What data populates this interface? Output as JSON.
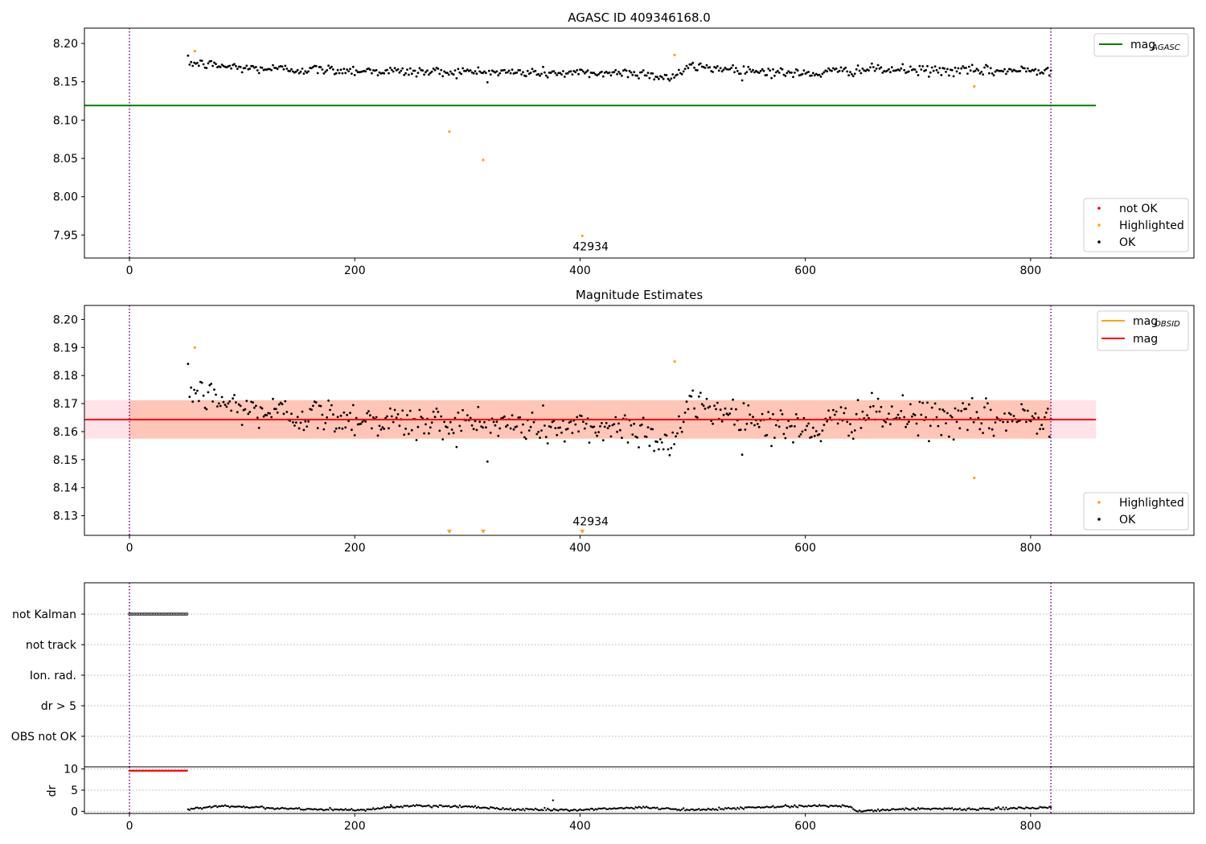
{
  "chart_data": [
    {
      "type": "scatter",
      "title": "AGASC ID 409346168.0",
      "xlim": [
        -40,
        945
      ],
      "ylim": [
        7.92,
        8.22
      ],
      "x_ticks": [
        0,
        200,
        400,
        600,
        800
      ],
      "y_ticks": [
        7.95,
        8.0,
        8.05,
        8.1,
        8.15,
        8.2
      ],
      "vlines": [
        0,
        818
      ],
      "hlines": [
        {
          "name": "mag_AGASC",
          "y": 8.119,
          "x": [
            -40,
            858
          ],
          "color": "#008000"
        }
      ],
      "ok_series": {
        "name": "OK",
        "color": "#000000",
        "x_start": 52,
        "x_end": 818,
        "count": 560,
        "profile": [
          [
            52,
            8.175
          ],
          [
            100,
            8.168
          ],
          [
            150,
            8.166
          ],
          [
            200,
            8.165
          ],
          [
            250,
            8.163
          ],
          [
            300,
            8.163
          ],
          [
            350,
            8.162
          ],
          [
            400,
            8.161
          ],
          [
            450,
            8.162
          ],
          [
            480,
            8.155
          ],
          [
            500,
            8.17
          ],
          [
            550,
            8.165
          ],
          [
            600,
            8.16
          ],
          [
            650,
            8.166
          ],
          [
            700,
            8.165
          ],
          [
            750,
            8.164
          ],
          [
            818,
            8.165
          ]
        ],
        "spread": 0.006
      },
      "highlighted": {
        "name": "Highlighted",
        "color": "#ffa500",
        "x": [
          58,
          284,
          314,
          402,
          484,
          750
        ],
        "y": [
          8.19,
          8.085,
          8.048,
          7.949,
          8.185,
          8.144
        ]
      },
      "not_ok": {
        "name": "not OK",
        "color": "#ff0000",
        "x": [],
        "y": []
      },
      "annotations": [
        {
          "text": "42934",
          "x": 408,
          "y": 7.935
        }
      ],
      "legends": {
        "lines": {
          "position": "top-right",
          "entries": [
            {
              "name": "mag",
              "sub": "AGASC",
              "color": "#008000"
            }
          ]
        },
        "points": {
          "position": "bottom-right",
          "entries": [
            {
              "name": "not OK",
              "color": "#ff0000"
            },
            {
              "name": "Highlighted",
              "color": "#ffa500"
            },
            {
              "name": "OK",
              "color": "#000000"
            }
          ]
        }
      }
    },
    {
      "type": "scatter",
      "title": "Magnitude Estimates",
      "xlim": [
        -40,
        945
      ],
      "ylim": [
        8.123,
        8.205
      ],
      "x_ticks": [
        0,
        200,
        400,
        600,
        800
      ],
      "y_ticks": [
        8.13,
        8.14,
        8.15,
        8.16,
        8.17,
        8.18,
        8.19,
        8.2
      ],
      "vlines": [
        0,
        818
      ],
      "bands": [
        {
          "name": "band-pink",
          "y": [
            8.1575,
            8.1712
          ],
          "x": [
            -40,
            858
          ],
          "color": "#ffc0cb",
          "opacity": 0.45
        },
        {
          "name": "band-orange",
          "y": [
            8.1575,
            8.1712
          ],
          "x": [
            0,
            818
          ],
          "color": "#ffa07a",
          "opacity": 0.45
        }
      ],
      "hlines": [
        {
          "name": "mag_OBSID",
          "y": 8.1643,
          "x": [
            0,
            818
          ],
          "color": "#ffa500"
        },
        {
          "name": "mag",
          "y": 8.1643,
          "x": [
            -40,
            858
          ],
          "color": "#ff0000"
        }
      ],
      "ok_series": {
        "name": "OK",
        "color": "#000000",
        "x_start": 52,
        "x_end": 818,
        "count": 560,
        "profile": [
          [
            52,
            8.175
          ],
          [
            100,
            8.168
          ],
          [
            150,
            8.166
          ],
          [
            200,
            8.165
          ],
          [
            250,
            8.163
          ],
          [
            300,
            8.163
          ],
          [
            350,
            8.162
          ],
          [
            400,
            8.161
          ],
          [
            450,
            8.162
          ],
          [
            480,
            8.155
          ],
          [
            500,
            8.17
          ],
          [
            550,
            8.165
          ],
          [
            600,
            8.16
          ],
          [
            650,
            8.166
          ],
          [
            700,
            8.165
          ],
          [
            750,
            8.164
          ],
          [
            818,
            8.165
          ]
        ],
        "spread": 0.006
      },
      "highlighted": {
        "name": "Highlighted",
        "color": "#ffa500",
        "x": [
          58,
          484,
          750
        ],
        "y": [
          8.19,
          8.185,
          8.1435
        ]
      },
      "off_scale_markers": {
        "color": "#ffa500",
        "x": [
          284,
          314,
          402
        ]
      },
      "annotations": [
        {
          "text": "42934",
          "x": 408,
          "y": 8.126
        }
      ],
      "legends": {
        "lines": {
          "position": "top-right",
          "entries": [
            {
              "name": "mag",
              "sub": "OBSID",
              "color": "#ffa500"
            },
            {
              "name": "mag",
              "sub": "",
              "color": "#ff0000"
            }
          ]
        },
        "points": {
          "position": "bottom-right",
          "entries": [
            {
              "name": "Highlighted",
              "color": "#ffa500"
            },
            {
              "name": "OK",
              "color": "#000000"
            }
          ]
        }
      }
    },
    {
      "type": "scatter",
      "title": "",
      "xlim": [
        -40,
        945
      ],
      "categories": [
        "not Kalman",
        "not track",
        "Ion. rad.",
        "dr > 5",
        "OBS not OK"
      ],
      "vlines": [
        0,
        818
      ],
      "flag_points": [
        {
          "category": "not Kalman",
          "x_start": 0,
          "x_end": 52,
          "step": 1.5,
          "color": "#000000"
        }
      ]
    },
    {
      "type": "scatter",
      "title": "",
      "ylabel": "dr",
      "xlim": [
        -40,
        945
      ],
      "ylim": [
        -0.5,
        10.5
      ],
      "x_ticks": [
        0,
        200,
        400,
        600,
        800
      ],
      "y_ticks": [
        0,
        5,
        10
      ],
      "vlines": [
        0,
        818
      ],
      "red_series": {
        "color": "#ff0000",
        "x_start": 0,
        "x_end": 52,
        "step": 1.5,
        "y": 9.6
      },
      "ok_series": {
        "color": "#000000",
        "x_start": 52,
        "x_end": 818,
        "count": 560,
        "profile": [
          [
            52,
            0.6
          ],
          [
            80,
            1.2
          ],
          [
            150,
            0.6
          ],
          [
            200,
            0.3
          ],
          [
            250,
            1.3
          ],
          [
            300,
            1.1
          ],
          [
            350,
            0.4
          ],
          [
            400,
            0.3
          ],
          [
            450,
            0.9
          ],
          [
            500,
            0.3
          ],
          [
            550,
            0.9
          ],
          [
            600,
            1.3
          ],
          [
            640,
            1.2
          ],
          [
            645,
            0.1
          ],
          [
            700,
            0.6
          ],
          [
            750,
            0.5
          ],
          [
            818,
            0.9
          ]
        ],
        "spread": 0.25,
        "outliers": [
          [
            376,
            2.6
          ],
          [
            232,
            1.5
          ]
        ]
      }
    }
  ]
}
